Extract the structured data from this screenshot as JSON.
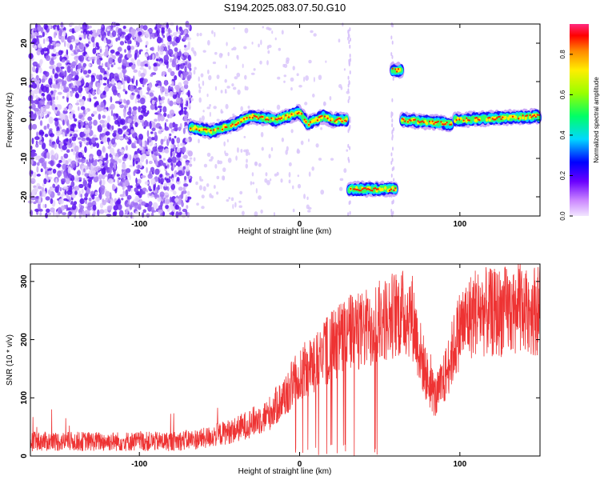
{
  "title": "S194.2025.083.07.50.G10",
  "chart_data": [
    {
      "type": "heatmap",
      "xlabel": "Height of straight line (km)",
      "ylabel": "Frequency (Hz)",
      "xlim": [
        -168,
        150
      ],
      "ylim": [
        -25,
        25
      ],
      "xticks": [
        -100,
        0,
        100
      ],
      "yticks": [
        -20,
        -10,
        0,
        10,
        20
      ],
      "colorbar": {
        "label": "Normalized spectral amplitude",
        "range": [
          0.0,
          0.95
        ],
        "ticks": [
          0.0,
          0.2,
          0.4,
          0.6,
          0.8
        ]
      },
      "traces": [
        {
          "x": [
            -68,
            -55,
            -40,
            -30,
            -15,
            0,
            5,
            15,
            20,
            30
          ],
          "y": [
            -2,
            -3,
            -1,
            1,
            0,
            2,
            -1,
            1,
            0,
            0
          ]
        },
        {
          "x": [
            31,
            60
          ],
          "y": [
            -18,
            -18
          ]
        },
        {
          "x": [
            58,
            64
          ],
          "y": [
            13,
            13
          ]
        },
        {
          "x": [
            64,
            95
          ],
          "y": [
            0,
            -1
          ]
        },
        {
          "x": [
            97,
            150
          ],
          "y": [
            0,
            1
          ]
        }
      ]
    },
    {
      "type": "line",
      "xlabel": "Height of straight line (km)",
      "ylabel": "SNR (10 * v/v)",
      "xlim": [
        -168,
        150
      ],
      "ylim": [
        0,
        330
      ],
      "xticks": [
        -100,
        0,
        100
      ],
      "yticks": [
        0,
        100,
        200,
        300
      ],
      "colors": {
        "line": "#ee3333"
      },
      "series": [
        {
          "x": [
            -168,
            -140,
            -110,
            -80,
            -60,
            -40,
            -20,
            -10,
            0,
            10,
            20,
            30,
            40,
            50,
            60,
            70,
            75,
            80,
            85,
            90,
            100,
            110,
            120,
            130,
            140,
            150
          ],
          "y": [
            25,
            25,
            25,
            25,
            30,
            45,
            70,
            100,
            140,
            160,
            190,
            210,
            215,
            230,
            245,
            245,
            180,
            130,
            100,
            130,
            220,
            250,
            245,
            250,
            255,
            250
          ]
        }
      ]
    }
  ]
}
